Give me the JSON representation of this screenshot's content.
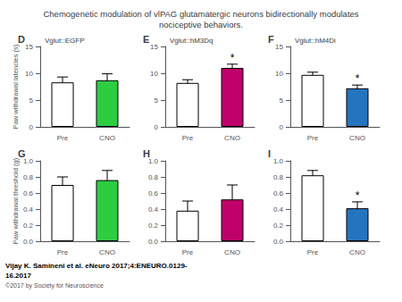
{
  "title": "Chemogenetic modulation of vlPAG glutamatergic neurons bidirectionally modulates\nnociceptive behaviors.",
  "annotations": [
    "Vijay K. Samineni et al. eNeuro 2017;4:ENEURO.0129-\n16.2017",
    "©2017 by Society for Neuroscience"
  ],
  "chart_data": [
    {
      "type": "bar",
      "title": "D",
      "subtitle": "Vglut::EGFP",
      "categories": [
        "Pre",
        "CNO"
      ],
      "values": [
        8.3,
        8.7
      ],
      "colors": [
        "white",
        "#2ECC40"
      ],
      "errors": [
        1.0,
        1.2
      ],
      "ylim": [
        0,
        15
      ],
      "yticks": [
        0,
        5,
        10,
        15
      ],
      "ylabel": "Paw withdrawal latencies (s)",
      "grid": false
    },
    {
      "type": "bar",
      "title": "E",
      "subtitle": "Vglut::hM3Dq",
      "categories": [
        "Pre",
        "CNO"
      ],
      "values": [
        8.2,
        11.0
      ],
      "colors": [
        "white",
        "#C0006B"
      ],
      "errors": [
        0.6,
        0.7
      ],
      "ylim": [
        0,
        15
      ],
      "yticks": [
        0,
        5,
        10,
        15
      ],
      "grid": false,
      "annotations": [
        {
          "text": "*",
          "x": "CNO"
        }
      ]
    },
    {
      "type": "bar",
      "title": "F",
      "subtitle": "Vglut::hM4Di",
      "categories": [
        "Pre",
        "CNO"
      ],
      "values": [
        9.7,
        7.2
      ],
      "colors": [
        "white",
        "#2574BE"
      ],
      "errors": [
        0.5,
        0.6
      ],
      "ylim": [
        0,
        15
      ],
      "yticks": [
        0,
        5,
        10,
        15
      ],
      "grid": false,
      "annotations": [
        {
          "text": "*",
          "x": "CNO"
        }
      ]
    },
    {
      "type": "bar",
      "title": "G",
      "categories": [
        "Pre",
        "CNO"
      ],
      "values": [
        0.7,
        0.76
      ],
      "colors": [
        "white",
        "#2ECC40"
      ],
      "errors": [
        0.1,
        0.12
      ],
      "ylim": [
        0.0,
        1.0
      ],
      "yticks": [
        {
          "value": 0,
          "label": "0.0"
        },
        0.2,
        0.4,
        0.6,
        0.8,
        {
          "value": 1,
          "label": "1.0"
        }
      ],
      "ylabel": "Paw withdrawal threshold (g)",
      "grid": false
    },
    {
      "type": "bar",
      "title": "H",
      "categories": [
        "Pre",
        "CNO"
      ],
      "values": [
        0.38,
        0.52
      ],
      "colors": [
        "white",
        "#C0006B"
      ],
      "errors": [
        0.12,
        0.18
      ],
      "ylim": [
        0.0,
        1.0
      ],
      "yticks": [
        {
          "value": 0,
          "label": "0.0"
        },
        0.2,
        0.4,
        0.6,
        0.8,
        {
          "value": 1,
          "label": "1.0"
        }
      ],
      "grid": false
    },
    {
      "type": "bar",
      "title": "I",
      "categories": [
        "Pre",
        "CNO"
      ],
      "values": [
        0.82,
        0.41
      ],
      "colors": [
        "white",
        "#2574BE"
      ],
      "errors": [
        0.06,
        0.08
      ],
      "ylim": [
        0.0,
        1.0
      ],
      "yticks": [
        {
          "value": 0,
          "label": "0.0"
        },
        0.2,
        0.4,
        0.6,
        0.8,
        {
          "value": 1,
          "label": "1.0"
        }
      ],
      "grid": false,
      "annotations": [
        {
          "text": "*",
          "x": "CNO"
        }
      ]
    }
  ]
}
